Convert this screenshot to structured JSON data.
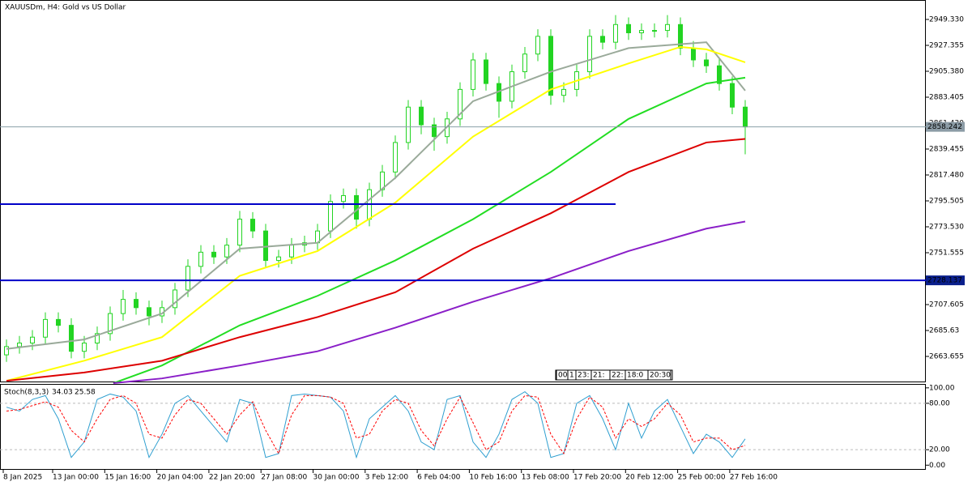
{
  "chart_data": [
    {
      "type": "candlestick",
      "title": "XAUUSDm, H4:  Gold vs US Dollar",
      "color": "#22d422",
      "open": [
        2665,
        2672,
        2675,
        2680,
        2695,
        2690,
        2668,
        2675,
        2683,
        2700,
        2712,
        2705,
        2698,
        2705,
        2720,
        2740,
        2752,
        2748,
        2758,
        2780,
        2770,
        2745,
        2748,
        2758,
        2760,
        2770,
        2795,
        2800,
        2780,
        2805,
        2820,
        2845,
        2875,
        2860,
        2850,
        2865,
        2890,
        2915,
        2895,
        2880,
        2905,
        2920,
        2935,
        2885,
        2890,
        2905,
        2935,
        2930,
        2945,
        2938,
        2940,
        2940,
        2945,
        2925,
        2915,
        2910,
        2895,
        2875
      ],
      "high": [
        2678,
        2681,
        2686,
        2701,
        2701,
        2696,
        2681,
        2689,
        2706,
        2720,
        2718,
        2711,
        2711,
        2726,
        2746,
        2758,
        2758,
        2764,
        2787,
        2786,
        2776,
        2754,
        2764,
        2766,
        2776,
        2801,
        2806,
        2806,
        2811,
        2826,
        2851,
        2881,
        2881,
        2866,
        2871,
        2896,
        2921,
        2921,
        2901,
        2911,
        2926,
        2941,
        2941,
        2896,
        2911,
        2941,
        2941,
        2953,
        2951,
        2946,
        2946,
        2953,
        2951,
        2931,
        2921,
        2916,
        2901,
        2881
      ],
      "low": [
        2659,
        2666,
        2669,
        2674,
        2684,
        2662,
        2662,
        2669,
        2677,
        2694,
        2699,
        2690,
        2692,
        2699,
        2714,
        2734,
        2742,
        2742,
        2752,
        2764,
        2739,
        2739,
        2742,
        2752,
        2754,
        2764,
        2789,
        2772,
        2774,
        2799,
        2814,
        2839,
        2852,
        2838,
        2844,
        2859,
        2884,
        2889,
        2866,
        2874,
        2899,
        2914,
        2877,
        2879,
        2884,
        2899,
        2924,
        2924,
        2932,
        2932,
        2934,
        2934,
        2919,
        2909,
        2904,
        2889,
        2869,
        2835
      ],
      "close": [
        2672,
        2675,
        2680,
        2695,
        2690,
        2668,
        2675,
        2683,
        2700,
        2712,
        2705,
        2698,
        2705,
        2720,
        2740,
        2752,
        2748,
        2758,
        2780,
        2770,
        2745,
        2748,
        2758,
        2760,
        2770,
        2795,
        2800,
        2780,
        2805,
        2820,
        2845,
        2875,
        2860,
        2850,
        2865,
        2890,
        2915,
        2895,
        2880,
        2905,
        2920,
        2935,
        2885,
        2890,
        2905,
        2935,
        2930,
        2945,
        2938,
        2940,
        2940,
        2945,
        2925,
        2915,
        2910,
        2895,
        2875,
        2858.242
      ],
      "series": [
        {
          "color": "#9aaa9a",
          "x": [
            0,
            6,
            12,
            18,
            24,
            30,
            36,
            42,
            48,
            54,
            57
          ],
          "values": [
            2670,
            2678,
            2700,
            2755,
            2760,
            2815,
            2880,
            2905,
            2925,
            2930,
            2889
          ]
        },
        {
          "color": "#ffff00",
          "x": [
            0,
            6,
            12,
            18,
            24,
            30,
            36,
            42,
            48,
            52,
            54,
            57
          ],
          "values": [
            2643,
            2660,
            2680,
            2732,
            2753,
            2794,
            2850,
            2890,
            2912,
            2926,
            2924,
            2913
          ]
        },
        {
          "color": "#22dd22",
          "x": [
            8.25,
            12,
            18,
            24,
            30,
            36,
            42,
            48,
            54,
            57
          ],
          "values": [
            2641,
            2656,
            2690,
            2715,
            2745,
            2780,
            2820,
            2865,
            2895,
            2900
          ]
        },
        {
          "color": "#dd0000",
          "x": [
            0,
            6,
            12,
            18,
            24,
            30,
            36,
            42,
            48,
            54,
            57
          ],
          "values": [
            2643,
            2650,
            2660,
            2680,
            2697,
            2718,
            2755,
            2785,
            2820,
            2845,
            2848
          ]
        },
        {
          "color": "#8a1fc8",
          "x": [
            8.25,
            12,
            18,
            24,
            30,
            36,
            42,
            48,
            54,
            57
          ],
          "values": [
            2641,
            2645,
            2656,
            2668,
            2688,
            2710,
            2730,
            2753,
            2772,
            2778
          ]
        }
      ],
      "levels": [
        {
          "value": 2792.8,
          "color": "#0000c8",
          "x": [
            -0.5,
            47
          ]
        },
        {
          "value": 2728.137,
          "color": "#0000c8"
        }
      ],
      "ylim": [
        2641.7,
        2965.8
      ],
      "yticks": [
        {
          "value": 2949.33,
          "label": "2949.330"
        },
        2927.355,
        {
          "value": 2905.38,
          "label": "2905.380"
        },
        2883.405,
        {
          "value": 2861.43,
          "label": "2861.430"
        },
        2839.455,
        {
          "value": 2817.48,
          "label": "2817.480"
        },
        2795.505,
        {
          "value": 2773.53,
          "label": "2773.530"
        },
        2751.555,
        2707.605,
        2685.63,
        2663.655
      ],
      "xlabels": [
        "8 Jan 2025",
        "13 Jan 00:00",
        "15 Jan 16:00",
        "20 Jan 04:00",
        "22 Jan 20:00",
        "27 Jan 08:00",
        "30 Jan 00:00",
        "3 Feb 12:00",
        "6 Feb 04:00",
        "10 Feb 16:00",
        "13 Feb 08:00",
        "17 Feb 20:00",
        "20 Feb 12:00",
        "25 Feb 00:00",
        "27 Feb 16:00"
      ],
      "scroll_labels": [
        "00",
        "1",
        "23:",
        "21:",
        "22:",
        "18:0",
        "20:30"
      ]
    },
    {
      "type": "line",
      "title": "Stoch(8,3,3)",
      "series": [
        {
          "color": "#2f9fd0",
          "values": [
            75,
            70,
            85,
            90,
            60,
            10,
            30,
            85,
            92,
            88,
            70,
            10,
            40,
            80,
            90,
            70,
            50,
            30,
            85,
            80,
            10,
            15,
            90,
            92,
            90,
            88,
            70,
            10,
            60,
            75,
            90,
            70,
            30,
            20,
            85,
            90,
            30,
            10,
            40,
            85,
            95,
            80,
            10,
            15,
            80,
            90,
            60,
            20,
            80,
            35,
            70,
            85,
            50,
            15,
            40,
            30,
            10,
            34.03
          ]
        },
        {
          "color": "#ff0000",
          "dashed": true,
          "values": [
            70,
            72,
            77,
            82,
            75,
            45,
            30,
            60,
            85,
            90,
            80,
            40,
            35,
            65,
            85,
            80,
            60,
            40,
            65,
            82,
            45,
            15,
            65,
            90,
            90,
            88,
            80,
            35,
            40,
            70,
            85,
            80,
            45,
            25,
            60,
            88,
            55,
            20,
            30,
            70,
            90,
            88,
            40,
            15,
            60,
            88,
            75,
            35,
            60,
            50,
            60,
            80,
            65,
            30,
            35,
            35,
            20,
            25.58
          ]
        }
      ],
      "ylim": [
        -6,
        104
      ],
      "yticks": [
        {
          "value": 100,
          "label": "100.00"
        },
        {
          "value": 80,
          "label": "80.00"
        },
        {
          "value": 20,
          "label": "20.00"
        },
        {
          "value": 0,
          "label": "0.00"
        }
      ]
    }
  ]
}
